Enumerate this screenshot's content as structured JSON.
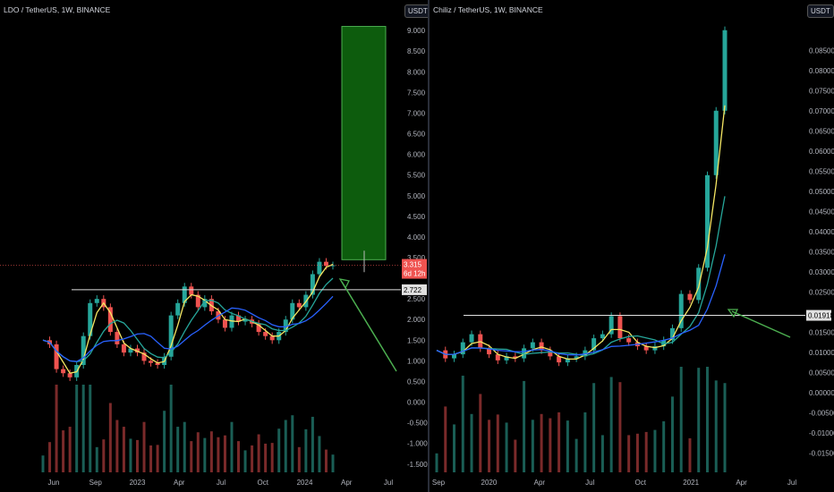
{
  "chart_data": [
    {
      "type": "line",
      "title": "LDO / TetherUS, 1W, BINANCE",
      "quote_unit_button": "USDT",
      "x_ticks": [
        "Jun",
        "Sep",
        "2023",
        "Apr",
        "Jul",
        "Oct",
        "2024",
        "Apr",
        "Jul"
      ],
      "y_ticks": [
        "9.000",
        "8.500",
        "8.000",
        "7.500",
        "7.000",
        "6.500",
        "6.000",
        "5.500",
        "5.000",
        "4.500",
        "4.000",
        "3.500",
        "2.500",
        "2.000",
        "1.500",
        "1.000",
        "0.500",
        "0.000",
        "-0.500",
        "-1.000",
        "-1.500"
      ],
      "ylim": [
        -1.7,
        9.35
      ],
      "current_price": "3.315",
      "countdown": "6d 12h",
      "horizontal_level": "2.722",
      "target_box": {
        "low": 3.45,
        "high": 9.1
      },
      "series": [
        {
          "values": [
            1.5,
            1.4,
            0.8,
            0.7,
            0.6,
            0.9,
            1.6,
            2.4,
            2.5,
            2.3,
            1.7,
            1.4,
            1.2,
            1.3,
            1.2,
            1.0,
            0.95,
            0.9,
            1.1,
            2.1,
            2.4,
            2.8,
            2.6,
            2.3,
            2.5,
            2.2,
            2.0,
            1.8,
            2.1,
            1.95,
            2.0,
            1.9,
            1.7,
            1.6,
            1.5,
            1.7,
            2.0,
            2.4,
            2.3,
            2.6,
            3.1,
            3.4,
            3.3,
            3.315
          ]
        }
      ]
    },
    {
      "type": "line",
      "title": "Chiliz / TetherUS, 1W, BINANCE",
      "quote_unit_button": "USDT",
      "x_ticks": [
        "Sep",
        "2020",
        "Apr",
        "Jul",
        "Oct",
        "2021",
        "Apr",
        "Jul"
      ],
      "y_ticks": [
        "0.08500",
        "0.08000",
        "0.07500",
        "0.07000",
        "0.06500",
        "0.06000",
        "0.05500",
        "0.05000",
        "0.04500",
        "0.04000",
        "0.03500",
        "0.03000",
        "0.02500",
        "0.01500",
        "0.01000",
        "0.00500",
        "0.00000",
        "-0.00500",
        "-0.01000",
        "-0.01500"
      ],
      "ylim": [
        -0.0198,
        0.0935
      ],
      "horizontal_level": "0.01918",
      "series": [
        {
          "values": [
            0.0105,
            0.0085,
            0.0095,
            0.0125,
            0.0145,
            0.011,
            0.0095,
            0.008,
            0.009,
            0.0085,
            0.011,
            0.0125,
            0.0105,
            0.009,
            0.0075,
            0.0085,
            0.009,
            0.0105,
            0.0135,
            0.0145,
            0.019,
            0.0135,
            0.0125,
            0.0115,
            0.0105,
            0.0115,
            0.013,
            0.016,
            0.0245,
            0.023,
            0.031,
            0.054,
            0.07,
            0.09
          ]
        }
      ]
    }
  ]
}
